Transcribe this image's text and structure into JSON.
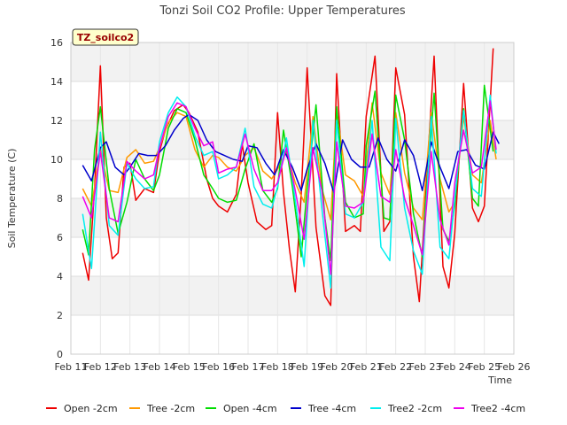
{
  "chart_data": {
    "type": "line",
    "title": "Tonzi Soil CO2 Profile: Upper Temperatures",
    "xlabel": "Time",
    "ylabel": "Soil Temperature (C)",
    "badge": "TZ_soilco2",
    "xlim": [
      11,
      26
    ],
    "ylim": [
      0,
      16
    ],
    "xticks": [
      11,
      12,
      13,
      14,
      15,
      16,
      17,
      18,
      19,
      20,
      21,
      22,
      23,
      24,
      25,
      26
    ],
    "xtick_labels": [
      "Feb 11",
      "Feb 12",
      "Feb 13",
      "Feb 14",
      "Feb 15",
      "Feb 16",
      "Feb 17",
      "Feb 18",
      "Feb 19",
      "Feb 20",
      "Feb 21",
      "Feb 22",
      "Feb 23",
      "Feb 24",
      "Feb 25",
      "Feb 26"
    ],
    "yticks": [
      0,
      2,
      4,
      6,
      8,
      10,
      12,
      14,
      16
    ],
    "grid": true,
    "legend_position": "bottom",
    "series": [
      {
        "name": "Open -2cm",
        "color": "#ee0000",
        "x": [
          11.4,
          11.6,
          11.8,
          12.0,
          12.2,
          12.4,
          12.6,
          12.8,
          13.0,
          13.2,
          13.5,
          13.8,
          14.0,
          14.2,
          14.5,
          14.8,
          15.0,
          15.3,
          15.6,
          15.8,
          16.0,
          16.3,
          16.6,
          16.8,
          17.0,
          17.3,
          17.6,
          17.8,
          18.0,
          18.2,
          18.4,
          18.6,
          18.8,
          19.0,
          19.3,
          19.6,
          19.8,
          20.0,
          20.3,
          20.6,
          20.8,
          21.0,
          21.3,
          21.6,
          21.8,
          22.0,
          22.3,
          22.6,
          22.8,
          23.0,
          23.3,
          23.6,
          23.8,
          24.0,
          24.3,
          24.6,
          24.8,
          25.0,
          25.3
        ],
        "y": [
          5.2,
          3.8,
          8.5,
          14.8,
          7.0,
          4.9,
          5.2,
          9.6,
          9.8,
          7.9,
          8.5,
          8.3,
          10.4,
          11.5,
          12.5,
          12.8,
          12.4,
          11.4,
          9.0,
          8.0,
          7.6,
          7.3,
          8.2,
          10.8,
          8.8,
          6.8,
          6.4,
          6.6,
          12.4,
          8.3,
          5.4,
          3.2,
          8.2,
          14.7,
          6.5,
          3.0,
          2.5,
          14.4,
          6.3,
          6.6,
          6.3,
          12.2,
          15.3,
          6.3,
          6.8,
          14.7,
          12.3,
          5.0,
          2.7,
          7.8,
          15.3,
          4.5,
          3.4,
          6.2,
          13.9,
          7.5,
          6.8,
          7.6,
          15.7
        ]
      },
      {
        "name": "Tree -2cm",
        "color": "#ff9900",
        "x": [
          11.4,
          11.7,
          12.0,
          12.3,
          12.6,
          12.9,
          13.2,
          13.5,
          13.8,
          14.0,
          14.3,
          14.6,
          14.9,
          15.2,
          15.5,
          15.8,
          16.0,
          16.3,
          16.6,
          16.9,
          17.2,
          17.5,
          17.8,
          18.0,
          18.3,
          18.6,
          18.9,
          19.2,
          19.5,
          19.8,
          20.0,
          20.3,
          20.6,
          20.9,
          21.2,
          21.5,
          21.8,
          22.0,
          22.3,
          22.6,
          22.9,
          23.2,
          23.5,
          23.8,
          24.0,
          24.3,
          24.6,
          24.9,
          25.2,
          25.4
        ],
        "y": [
          8.5,
          7.6,
          10.5,
          8.4,
          8.3,
          10.1,
          10.5,
          9.8,
          9.9,
          10.6,
          11.9,
          12.4,
          12.2,
          10.5,
          9.6,
          10.2,
          10.1,
          9.6,
          9.4,
          10.2,
          10.6,
          9.4,
          9.0,
          9.5,
          10.4,
          8.8,
          7.8,
          12.2,
          8.5,
          6.9,
          12.5,
          9.2,
          8.9,
          8.1,
          12.9,
          9.3,
          8.2,
          12.4,
          9.3,
          7.5,
          6.9,
          12.4,
          9.0,
          7.3,
          7.8,
          12.2,
          9.2,
          8.8,
          12.0,
          10.0
        ]
      },
      {
        "name": "Open -4cm",
        "color": "#00dd00",
        "x": [
          11.4,
          11.6,
          11.8,
          12.0,
          12.3,
          12.6,
          12.9,
          13.2,
          13.5,
          13.8,
          14.0,
          14.3,
          14.6,
          14.9,
          15.2,
          15.5,
          15.8,
          16.0,
          16.3,
          16.6,
          16.9,
          17.2,
          17.5,
          17.8,
          18.0,
          18.2,
          18.5,
          18.8,
          19.0,
          19.3,
          19.6,
          19.8,
          20.0,
          20.3,
          20.6,
          20.9,
          21.0,
          21.3,
          21.6,
          21.8,
          22.0,
          22.3,
          22.6,
          22.9,
          23.0,
          23.3,
          23.6,
          23.8,
          24.0,
          24.3,
          24.6,
          24.8,
          25.0,
          25.3
        ],
        "y": [
          6.4,
          5.1,
          10.5,
          12.7,
          8.5,
          6.2,
          7.8,
          10.0,
          9.0,
          8.4,
          9.2,
          11.6,
          12.6,
          12.4,
          11.0,
          9.2,
          8.5,
          8.0,
          7.8,
          7.9,
          9.5,
          10.8,
          8.4,
          7.8,
          8.5,
          11.5,
          8.6,
          5.0,
          8.5,
          12.8,
          7.0,
          4.8,
          12.7,
          7.8,
          7.0,
          7.2,
          10.7,
          13.5,
          7.0,
          6.9,
          13.3,
          11.0,
          7.2,
          5.0,
          7.5,
          13.4,
          6.4,
          5.8,
          7.6,
          12.6,
          8.0,
          7.6,
          13.8,
          10.4
        ]
      },
      {
        "name": "Tree -4cm",
        "color": "#0000cc",
        "x": [
          11.4,
          11.7,
          12.0,
          12.2,
          12.5,
          12.8,
          13.0,
          13.3,
          13.6,
          13.9,
          14.2,
          14.5,
          14.8,
          15.0,
          15.3,
          15.6,
          15.9,
          16.2,
          16.5,
          16.8,
          17.0,
          17.3,
          17.6,
          17.9,
          18.2,
          18.5,
          18.8,
          19.0,
          19.3,
          19.6,
          19.9,
          20.2,
          20.5,
          20.8,
          21.1,
          21.4,
          21.7,
          22.0,
          22.3,
          22.6,
          22.9,
          23.2,
          23.5,
          23.8,
          24.1,
          24.4,
          24.7,
          25.0,
          25.3,
          25.5
        ],
        "y": [
          9.7,
          8.9,
          10.6,
          10.9,
          9.6,
          9.2,
          9.6,
          10.3,
          10.2,
          10.2,
          10.7,
          11.5,
          12.1,
          12.3,
          12.0,
          11.0,
          10.4,
          10.2,
          10.0,
          9.9,
          10.7,
          10.6,
          9.8,
          9.2,
          10.5,
          9.6,
          8.4,
          9.5,
          10.8,
          9.8,
          8.3,
          11.0,
          10.0,
          9.6,
          9.6,
          11.1,
          10.0,
          9.4,
          11.0,
          10.2,
          8.4,
          10.9,
          9.6,
          8.5,
          10.4,
          10.5,
          9.7,
          9.5,
          11.4,
          10.8
        ]
      },
      {
        "name": "Tree2 -2cm",
        "color": "#00eeee",
        "x": [
          11.4,
          11.7,
          12.0,
          12.3,
          12.6,
          12.9,
          13.2,
          13.5,
          13.8,
          14.0,
          14.3,
          14.6,
          14.9,
          15.2,
          15.5,
          15.8,
          16.0,
          16.3,
          16.6,
          16.9,
          17.2,
          17.5,
          17.8,
          18.0,
          18.3,
          18.6,
          18.9,
          19.2,
          19.5,
          19.8,
          20.0,
          20.3,
          20.6,
          20.9,
          21.2,
          21.5,
          21.8,
          22.0,
          22.3,
          22.6,
          22.9,
          23.2,
          23.5,
          23.8,
          24.0,
          24.3,
          24.6,
          24.9,
          25.2,
          25.4
        ],
        "y": [
          7.2,
          4.4,
          11.4,
          6.6,
          6.1,
          9.8,
          9.0,
          8.5,
          8.6,
          10.9,
          12.4,
          13.2,
          12.7,
          11.2,
          10.2,
          10.4,
          9.0,
          9.2,
          9.6,
          11.6,
          8.6,
          7.7,
          7.5,
          8.6,
          11.1,
          7.9,
          4.5,
          12.0,
          7.5,
          3.4,
          12.0,
          7.2,
          7.0,
          7.8,
          12.0,
          5.5,
          4.8,
          12.1,
          7.5,
          5.3,
          4.1,
          12.2,
          5.5,
          4.9,
          8.0,
          12.5,
          8.5,
          8.1,
          13.3,
          10.3
        ]
      },
      {
        "name": "Tree2 -4cm",
        "color": "#ee00ee",
        "x": [
          11.4,
          11.7,
          12.0,
          12.3,
          12.6,
          12.9,
          13.2,
          13.5,
          13.8,
          14.0,
          14.3,
          14.6,
          14.9,
          15.2,
          15.5,
          15.8,
          16.0,
          16.3,
          16.6,
          16.9,
          17.2,
          17.5,
          17.8,
          18.0,
          18.3,
          18.6,
          18.9,
          19.2,
          19.5,
          19.8,
          20.0,
          20.3,
          20.6,
          20.9,
          21.2,
          21.5,
          21.8,
          22.0,
          22.3,
          22.6,
          22.9,
          23.2,
          23.5,
          23.8,
          24.0,
          24.3,
          24.6,
          24.9,
          25.2,
          25.4
        ],
        "y": [
          8.1,
          7.0,
          10.4,
          7.0,
          6.8,
          9.9,
          9.4,
          9.0,
          9.2,
          10.6,
          12.2,
          12.9,
          12.7,
          11.6,
          10.7,
          10.9,
          9.3,
          9.5,
          9.6,
          11.3,
          9.5,
          8.4,
          8.4,
          8.8,
          10.6,
          8.4,
          5.9,
          10.6,
          8.4,
          4.1,
          10.9,
          7.6,
          7.5,
          7.8,
          11.3,
          8.1,
          7.8,
          10.5,
          8.0,
          6.6,
          5.1,
          10.4,
          6.9,
          5.6,
          8.8,
          11.5,
          9.3,
          9.6,
          13.0,
          10.5
        ]
      }
    ]
  }
}
